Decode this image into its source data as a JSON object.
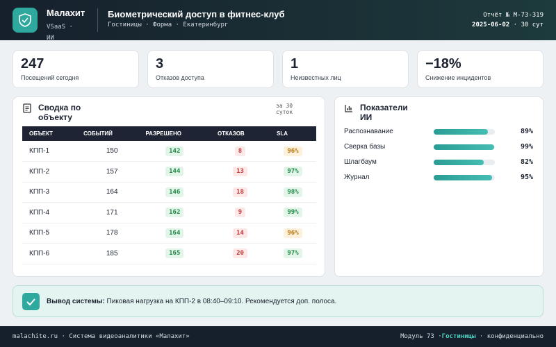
{
  "header": {
    "brand": "Малахит",
    "brand_sub": "VSaaS · ИИ",
    "title": "Биометрический доступ в фитнес-клуб",
    "subtitle": "Гостиницы · Форма · Екатеринбург",
    "report": "Отчёт № M-73-319",
    "date": "2025-06-02",
    "period": "· 30 сут"
  },
  "kpis": [
    {
      "value": "247",
      "label": "Посещений сегодня"
    },
    {
      "value": "3",
      "label": "Отказов доступа"
    },
    {
      "value": "1",
      "label": "Неизвестных лиц"
    },
    {
      "value": "−18%",
      "label": "Снижение инцидентов"
    }
  ],
  "table": {
    "title": "Сводка по объекту",
    "note": "за 30 суток",
    "columns": [
      "ОБЪЕКТ",
      "СОБЫТИЙ",
      "РАЗРЕШЕНО",
      "ОТКАЗОВ",
      "SLA"
    ],
    "rows": [
      [
        "КПП-1",
        150,
        142,
        8,
        {
          "value": 96,
          "label": "96%"
        }
      ],
      [
        "КПП-2",
        157,
        144,
        13,
        {
          "value": 97,
          "label": "97%"
        }
      ],
      [
        "КПП-3",
        164,
        146,
        18,
        {
          "value": 98,
          "label": "98%"
        }
      ],
      [
        "КПП-4",
        171,
        162,
        9,
        {
          "value": 99,
          "label": "99%"
        }
      ],
      [
        "КПП-5",
        178,
        164,
        14,
        {
          "value": 96,
          "label": "96%"
        }
      ],
      [
        "КПП-6",
        185,
        165,
        20,
        {
          "value": 97,
          "label": "97%"
        }
      ]
    ]
  },
  "metrics": {
    "title": "Показатели ИИ",
    "items": [
      {
        "name": "Распознавание",
        "value": 89,
        "label": "89%"
      },
      {
        "name": "Сверка базы",
        "value": 99,
        "label": "99%"
      },
      {
        "name": "Шлагбаум",
        "value": 82,
        "label": "82%"
      },
      {
        "name": "Журнал",
        "value": 95,
        "label": "95%"
      }
    ]
  },
  "alert": {
    "label": "Вывод системы:",
    "text": "Пиковая нагрузка на КПП-2 в 08:40–09:10. Рекомендуется доп. полоса."
  },
  "footer": {
    "left": "malachite.ru · Система видеоаналитики «Малахит»",
    "module": "Модуль 73 ·",
    "tag": "Гостиницы",
    "right": "· конфиденциально"
  }
}
